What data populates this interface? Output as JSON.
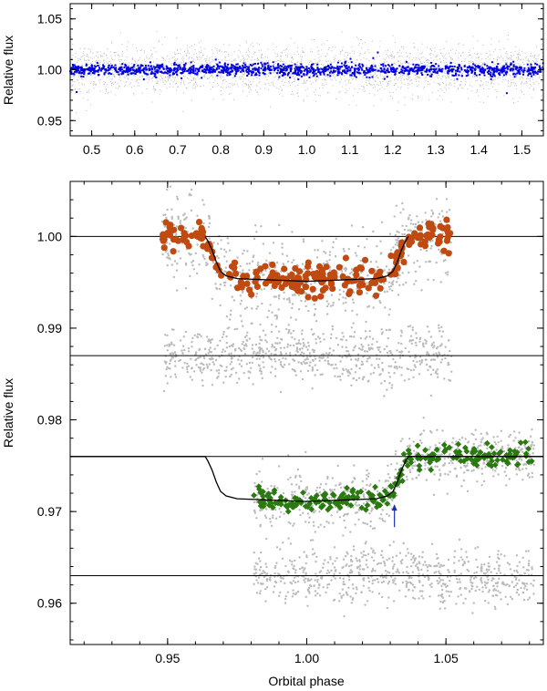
{
  "chart_data": [
    {
      "type": "scatter",
      "panel": "top",
      "xlabel": "",
      "ylabel": "Relative flux",
      "xlim": [
        0.45,
        1.55
      ],
      "ylim": [
        0.935,
        1.065
      ],
      "xticks": [
        "0.5",
        "0.6",
        "0.7",
        "0.8",
        "0.9",
        "1.0",
        "1.1",
        "1.2",
        "1.3",
        "1.4",
        "1.5"
      ],
      "yticks": [
        "0.95",
        "1.00",
        "1.05"
      ],
      "series": [
        {
          "color": "#bbbbbb",
          "marker": "small-dot",
          "description_values": {
            "center": 1.0,
            "scatter": 0.012,
            "x_range": [
              0.45,
              1.55
            ]
          }
        },
        {
          "color": "#0000dd",
          "marker": "dot",
          "description_values": {
            "center": 1.0,
            "scatter": 0.003,
            "x_range": [
              0.45,
              1.55
            ]
          }
        }
      ],
      "outliers": [
        {
          "x": 0.465,
          "y": 0.978
        },
        {
          "x": 1.465,
          "y": 0.977
        },
        {
          "x": 1.165,
          "y": 1.017
        }
      ]
    },
    {
      "type": "scatter",
      "panel": "bottom",
      "xlabel": "Orbital phase",
      "ylabel": "Relative flux",
      "xlim": [
        0.915,
        1.085
      ],
      "ylim": [
        0.9555,
        1.006
      ],
      "xticks": [
        "0.95",
        "1.00",
        "1.05"
      ],
      "yticks": [
        "0.96",
        "0.97",
        "0.98",
        "0.99",
        "1.00"
      ],
      "reference_lines": [
        1.0,
        0.987,
        0.976,
        0.963
      ],
      "transit_model": [
        {
          "x": 0.915,
          "y": 1.0
        },
        {
          "x": 0.9635,
          "y": 1.0
        },
        {
          "x": 0.9645,
          "y": 0.9995
        },
        {
          "x": 0.966,
          "y": 0.9985
        },
        {
          "x": 0.9675,
          "y": 0.9972
        },
        {
          "x": 0.969,
          "y": 0.9962
        },
        {
          "x": 0.971,
          "y": 0.9957
        },
        {
          "x": 0.975,
          "y": 0.9954
        },
        {
          "x": 1.0,
          "y": 0.9951
        },
        {
          "x": 1.025,
          "y": 0.9954
        },
        {
          "x": 1.029,
          "y": 0.9957
        },
        {
          "x": 1.031,
          "y": 0.9962
        },
        {
          "x": 1.0325,
          "y": 0.9972
        },
        {
          "x": 1.034,
          "y": 0.9985
        },
        {
          "x": 1.0355,
          "y": 0.9995
        },
        {
          "x": 1.0365,
          "y": 1.0
        },
        {
          "x": 1.085,
          "y": 1.0
        }
      ],
      "eclipse_model": [
        {
          "x": 0.915,
          "y": 0.976
        },
        {
          "x": 0.9635,
          "y": 0.976
        },
        {
          "x": 0.9645,
          "y": 0.9755
        },
        {
          "x": 0.966,
          "y": 0.9745
        },
        {
          "x": 0.9675,
          "y": 0.9732
        },
        {
          "x": 0.969,
          "y": 0.9722
        },
        {
          "x": 0.971,
          "y": 0.9717
        },
        {
          "x": 0.975,
          "y": 0.9714
        },
        {
          "x": 1.0,
          "y": 0.9711
        },
        {
          "x": 1.025,
          "y": 0.9714
        },
        {
          "x": 1.029,
          "y": 0.9717
        },
        {
          "x": 1.031,
          "y": 0.9722
        },
        {
          "x": 1.0325,
          "y": 0.9732
        },
        {
          "x": 1.034,
          "y": 0.9745
        },
        {
          "x": 1.0355,
          "y": 0.9755
        },
        {
          "x": 1.0365,
          "y": 0.976
        },
        {
          "x": 1.085,
          "y": 0.976
        }
      ],
      "series": [
        {
          "color": "#c04a10",
          "marker": "circle",
          "x_range": [
            0.948,
            1.052
          ],
          "model": "transit_model",
          "scatter": 0.0008
        },
        {
          "color": "#bbbbbb",
          "marker": "small-dot",
          "x_range": [
            0.948,
            1.052
          ],
          "model": "transit_model",
          "scatter": 0.0023
        },
        {
          "color": "#bbbbbb",
          "marker": "small-dot",
          "x_range": [
            0.948,
            1.052
          ],
          "center": 0.987,
          "scatter": 0.0015
        },
        {
          "color": "#2a7a10",
          "marker": "diamond",
          "x_range": [
            0.981,
            1.082
          ],
          "model": "eclipse_model",
          "scatter": 0.0006
        },
        {
          "color": "#bbbbbb",
          "marker": "small-dot",
          "x_range": [
            0.981,
            1.082
          ],
          "model": "eclipse_model",
          "scatter": 0.0015
        },
        {
          "color": "#bbbbbb",
          "marker": "small-dot",
          "x_range": [
            0.981,
            1.082
          ],
          "center": 0.963,
          "scatter": 0.0015
        }
      ],
      "annotation": {
        "type": "arrow",
        "color": "#1a2fb0",
        "x": 1.0315,
        "y_from": 0.9683,
        "y_to": 0.9708
      }
    }
  ]
}
